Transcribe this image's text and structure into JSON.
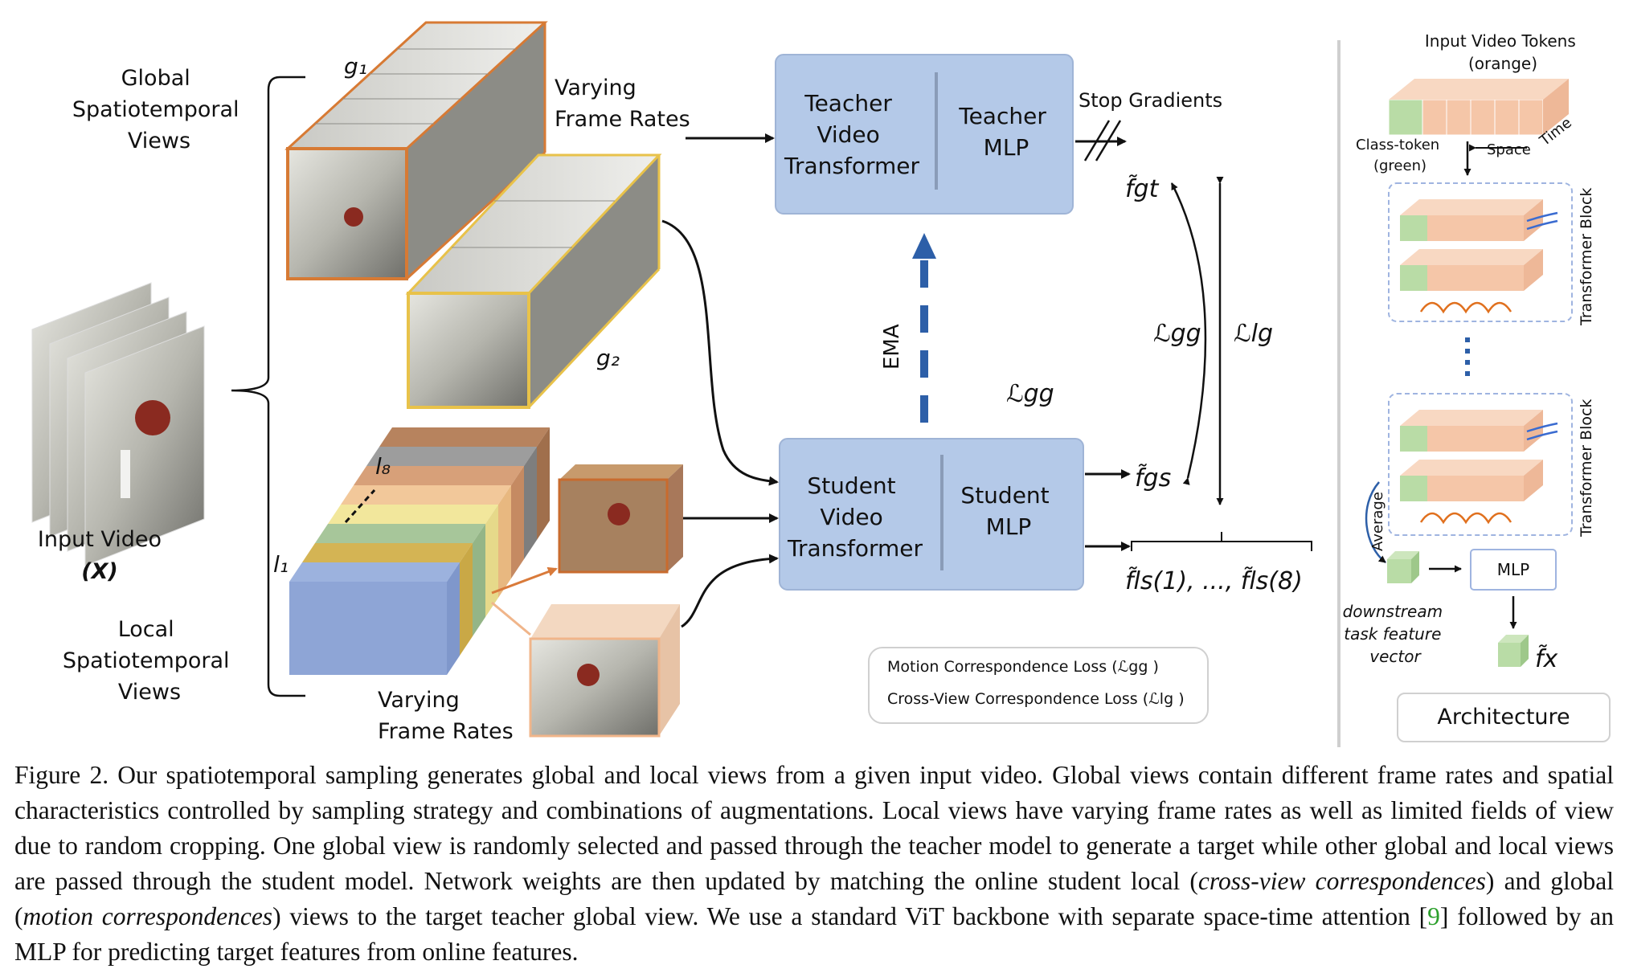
{
  "figure": {
    "global_views_label": [
      "Global",
      "Spatiotemporal",
      "Views"
    ],
    "local_views_label": [
      "Local",
      "Spatiotemporal",
      "Views"
    ],
    "input_video_label": "Input Video",
    "input_video_symbol": "(X)",
    "g1": "g₁",
    "g2": "g₂",
    "l1": "l₁",
    "l8": "l₈",
    "varying_rates_top": [
      "Varying",
      "Frame Rates"
    ],
    "varying_rates_bottom": [
      "Varying",
      "Frame Rates"
    ],
    "teacher_transformer": [
      "Teacher",
      "Video",
      "Transformer"
    ],
    "teacher_mlp": [
      "Teacher",
      "MLP"
    ],
    "student_transformer": [
      "Student",
      "Video",
      "Transformer"
    ],
    "student_mlp": [
      "Student",
      "MLP"
    ],
    "stop_gradients": "Stop Gradients",
    "ema": "EMA",
    "f_gt": "f̃gt",
    "f_gs": "f̃gs",
    "f_ls": "f̃ls(1), ..., f̃ls(8)",
    "loss_gg_right": "ℒgg",
    "loss_lg": "ℒlg",
    "loss_gg_mid": "ℒgg",
    "legend": {
      "motion": "Motion Correspondence Loss (ℒgg )",
      "cross_view": "Cross-View Correspondence Loss (ℒlg )"
    },
    "architecture": {
      "tokens_title": [
        "Input Video Tokens",
        "(orange)"
      ],
      "class_token": [
        "Class-token",
        "(green)"
      ],
      "space": "Space",
      "time": "Time",
      "transformer_block": "Transformer Block",
      "average": "Average",
      "mlp": "MLP",
      "downstream": [
        "downstream",
        "task feature",
        "vector"
      ],
      "f_x": "f̃x",
      "label": "Architecture"
    }
  },
  "caption": {
    "prefix": "Figure 2.  Our spatiotemporal sampling generates global and local views from a given input video.  Global views contain different frame rates and spatial characteristics controlled by sampling strategy and combinations of augmentations. Local views have varying frame rates as well as limited fields of view due to random cropping. One global view is randomly selected and passed through the teacher model to generate a target while other global and local views are passed through the student model. Network weights are then updated by matching the online student local (",
    "italic1": "cross-view correspondences",
    "mid": ") and global (",
    "italic2": "motion correspondences",
    "mid2": ") views to the target teacher global view. We use a standard ViT backbone with separate space-time attention [",
    "ref": "9",
    "suffix": "] followed by an MLP for predicting target features from online features."
  }
}
